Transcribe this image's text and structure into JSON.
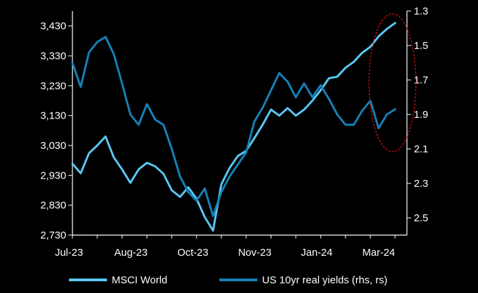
{
  "chart_data": {
    "type": "line",
    "title": "",
    "xlabel": "",
    "ylabel": "",
    "y2label": "",
    "x_tick_labels": [
      "Jul-23",
      "Aug-23",
      "Oct-23",
      "Nov-23",
      "Jan-24",
      "Mar-24"
    ],
    "y_left": {
      "min": 2730,
      "max": 3480,
      "ticks": [
        3430,
        3330,
        3230,
        3130,
        3030,
        2930,
        2830,
        2730
      ],
      "tick_labels": [
        "3,430",
        "3,330",
        "3,230",
        "3,130",
        "3,030",
        "2,930",
        "2,830",
        "2,730"
      ]
    },
    "y_right": {
      "min": 1.3,
      "max": 2.6,
      "inverted": true,
      "ticks": [
        1.3,
        1.5,
        1.7,
        1.9,
        2.1,
        2.3,
        2.5
      ],
      "tick_labels": [
        "1.3",
        "1.5",
        "1.7",
        "1.9",
        "2.1",
        "2.3",
        "2.5"
      ]
    },
    "grid": false,
    "legend_position": "bottom",
    "annotation": "red dashed ellipse around the most recent data (Mar-24)",
    "series": [
      {
        "name": "MSCI World",
        "axis": "left",
        "color": "#5bc8f5",
        "points": [
          [
            "2023-07-01",
            2969
          ],
          [
            "2023-07-08",
            2937
          ],
          [
            "2023-07-15",
            3004
          ],
          [
            "2023-07-22",
            3030
          ],
          [
            "2023-07-29",
            3060
          ],
          [
            "2023-08-05",
            2990
          ],
          [
            "2023-08-12",
            2950
          ],
          [
            "2023-08-19",
            2905
          ],
          [
            "2023-08-26",
            2950
          ],
          [
            "2023-09-02",
            2972
          ],
          [
            "2023-09-09",
            2960
          ],
          [
            "2023-09-16",
            2935
          ],
          [
            "2023-09-23",
            2880
          ],
          [
            "2023-09-30",
            2858
          ],
          [
            "2023-10-07",
            2890
          ],
          [
            "2023-10-14",
            2852
          ],
          [
            "2023-10-21",
            2790
          ],
          [
            "2023-10-28",
            2745
          ],
          [
            "2023-11-04",
            2900
          ],
          [
            "2023-11-11",
            2955
          ],
          [
            "2023-11-18",
            2995
          ],
          [
            "2023-11-25",
            3012
          ],
          [
            "2023-12-02",
            3055
          ],
          [
            "2023-12-09",
            3100
          ],
          [
            "2023-12-16",
            3150
          ],
          [
            "2023-12-23",
            3130
          ],
          [
            "2023-12-30",
            3155
          ],
          [
            "2024-01-06",
            3130
          ],
          [
            "2024-01-13",
            3150
          ],
          [
            "2024-01-20",
            3180
          ],
          [
            "2024-01-27",
            3215
          ],
          [
            "2024-02-03",
            3255
          ],
          [
            "2024-02-10",
            3260
          ],
          [
            "2024-02-17",
            3290
          ],
          [
            "2024-02-24",
            3310
          ],
          [
            "2024-03-02",
            3340
          ],
          [
            "2024-03-09",
            3360
          ],
          [
            "2024-03-16",
            3395
          ],
          [
            "2024-03-23",
            3420
          ],
          [
            "2024-03-30",
            3440
          ]
        ]
      },
      {
        "name": "US 10yr real yields (rhs, rs)",
        "axis": "right",
        "color": "#1582b8",
        "points": [
          [
            "2023-07-01",
            1.6
          ],
          [
            "2023-07-08",
            1.74
          ],
          [
            "2023-07-15",
            1.54
          ],
          [
            "2023-07-22",
            1.48
          ],
          [
            "2023-07-29",
            1.45
          ],
          [
            "2023-08-05",
            1.55
          ],
          [
            "2023-08-12",
            1.72
          ],
          [
            "2023-08-19",
            1.9
          ],
          [
            "2023-08-26",
            1.96
          ],
          [
            "2023-09-02",
            1.84
          ],
          [
            "2023-09-09",
            1.93
          ],
          [
            "2023-09-16",
            1.96
          ],
          [
            "2023-09-23",
            2.1
          ],
          [
            "2023-09-30",
            2.26
          ],
          [
            "2023-10-07",
            2.35
          ],
          [
            "2023-10-14",
            2.4
          ],
          [
            "2023-10-21",
            2.33
          ],
          [
            "2023-10-28",
            2.49
          ],
          [
            "2023-11-04",
            2.35
          ],
          [
            "2023-11-11",
            2.26
          ],
          [
            "2023-11-18",
            2.19
          ],
          [
            "2023-11-25",
            2.12
          ],
          [
            "2023-12-02",
            1.94
          ],
          [
            "2023-12-09",
            1.86
          ],
          [
            "2023-12-16",
            1.76
          ],
          [
            "2023-12-23",
            1.66
          ],
          [
            "2023-12-30",
            1.71
          ],
          [
            "2024-01-06",
            1.8
          ],
          [
            "2024-01-13",
            1.72
          ],
          [
            "2024-01-20",
            1.8
          ],
          [
            "2024-01-27",
            1.73
          ],
          [
            "2024-02-03",
            1.81
          ],
          [
            "2024-02-10",
            1.9
          ],
          [
            "2024-02-17",
            1.96
          ],
          [
            "2024-02-24",
            1.96
          ],
          [
            "2024-03-02",
            1.88
          ],
          [
            "2024-03-09",
            1.82
          ],
          [
            "2024-03-16",
            1.98
          ],
          [
            "2024-03-23",
            1.9
          ],
          [
            "2024-03-30",
            1.87
          ]
        ]
      }
    ]
  }
}
